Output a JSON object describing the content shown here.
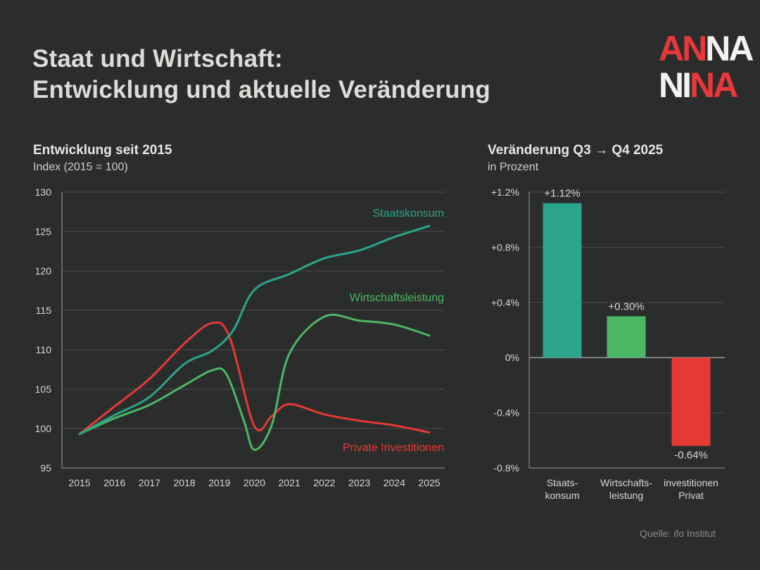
{
  "header": {
    "title_line1": "Staat und Wirtschaft:",
    "title_line2": "Entwicklung und aktuelle Veränderung"
  },
  "logo": {
    "row1_red": "AN",
    "row1_white": "NA",
    "row2_white": "NI",
    "row2_red": "NA"
  },
  "left_panel": {
    "title": "Entwicklung seit 2015",
    "subtitle": "Index (2015 = 100)"
  },
  "right_panel": {
    "title": "Veränderung Q3 → Q4 2025",
    "subtitle": "in Prozent"
  },
  "source": "Quelle: ifo Institut",
  "colors": {
    "teal": "#2aa58a",
    "green": "#4cb765",
    "red": "#e53935",
    "grid": "#4b4d4b",
    "axis": "#9a9c9a",
    "tick": "#d8d8d4"
  },
  "chart_data": [
    {
      "type": "line",
      "title": "Entwicklung seit 2015",
      "ylabel": "Index (2015 = 100)",
      "x": [
        2015,
        2016,
        2017,
        2018,
        2019,
        2020,
        2021,
        2022,
        2023,
        2024,
        2025
      ],
      "ylim": [
        95,
        130
      ],
      "yticks": [
        95,
        100,
        105,
        110,
        115,
        120,
        125,
        130
      ],
      "xtick_labels": [
        "2015",
        "2016",
        "2017",
        "2018",
        "2019",
        "2020",
        "2021",
        "2022",
        "2023",
        "2024",
        "2025"
      ],
      "series": [
        {
          "name": "Staatskonsum",
          "color": "#2aa58a",
          "x": [
            2015,
            2016,
            2017,
            2018,
            2018.8,
            2019.4,
            2020,
            2021,
            2022,
            2023,
            2024,
            2025
          ],
          "values": [
            99.3,
            101.7,
            104.0,
            108.2,
            109.9,
            112.5,
            117.6,
            119.6,
            121.6,
            122.6,
            124.3,
            125.7
          ]
        },
        {
          "name": "Wirtschaftsleistung",
          "color": "#4cb765",
          "x": [
            2015,
            2016,
            2017,
            2018,
            2018.8,
            2019.2,
            2019.7,
            2020,
            2020.5,
            2021,
            2022,
            2023,
            2024,
            2025
          ],
          "values": [
            99.3,
            101.3,
            103.0,
            105.5,
            107.4,
            106.9,
            101.0,
            97.3,
            100.5,
            109.5,
            114.2,
            113.7,
            113.2,
            111.8
          ]
        },
        {
          "name": "Private Investitionen",
          "color": "#e53935",
          "x": [
            2015,
            2016,
            2017,
            2018,
            2018.8,
            2019.3,
            2020,
            2020.5,
            2021,
            2022,
            2023,
            2024,
            2025
          ],
          "values": [
            99.3,
            102.8,
            106.3,
            110.8,
            113.4,
            111.5,
            100.3,
            101.6,
            103.1,
            101.8,
            101.0,
            100.4,
            99.5
          ]
        }
      ]
    },
    {
      "type": "bar",
      "title": "Veränderung Q3 → Q4 2025",
      "ylabel": "in Prozent",
      "categories": [
        "Staatskonsum",
        "Wirtschaftsleistung",
        "Private Investitionen"
      ],
      "category_labels": [
        [
          "Staats-",
          "konsum"
        ],
        [
          "Wirtschafts-",
          "leistung"
        ],
        [
          "investitionen",
          "Privat"
        ]
      ],
      "values": [
        1.12,
        0.3,
        -0.64
      ],
      "value_labels": [
        "+1.12%",
        "+0.30%",
        "-0.64%"
      ],
      "colors": [
        "#2aa58a",
        "#4cb765",
        "#e53935"
      ],
      "ylim": [
        -0.8,
        1.2
      ],
      "yticks": [
        -0.8,
        -0.4,
        0,
        0.4,
        0.8,
        1.2
      ],
      "ytick_labels": [
        "-0.8%",
        "-0.4%",
        "0%",
        "+0.4%",
        "+0.8%",
        "+1.2%"
      ]
    }
  ]
}
